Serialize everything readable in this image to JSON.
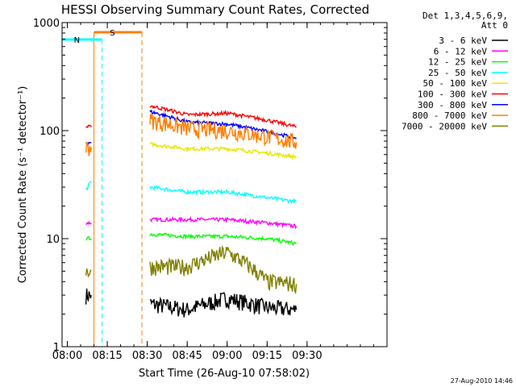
{
  "chart_data": {
    "type": "line",
    "title": "HESSI Observing Summary Count Rates, Corrected",
    "xlabel": "Start Time (26-Aug-10 07:58:02)",
    "ylabel": "Corrected Count Rate (s⁻¹ detector⁻¹)",
    "yscale": "log",
    "ylim": [
      1,
      1000
    ],
    "xlim": [
      "07:58:02",
      "10:00"
    ],
    "x_ticks": [
      "08:00",
      "08:15",
      "08:30",
      "08:45",
      "09:00",
      "09:15",
      "09:30"
    ],
    "y_ticks": [
      "1",
      "10",
      "100",
      "1000"
    ],
    "grid": false,
    "legend_title": [
      "Det 1,3,4,5,6,9,",
      "Att 0"
    ],
    "legend_position": "right",
    "footer_date": "27-Aug-2010 14:46",
    "flags": [
      {
        "label": "S",
        "color": "#ff7f00",
        "start": "08:10",
        "end": "08:28"
      },
      {
        "label": "N",
        "color": "#00ffff",
        "start": "07:58",
        "end": "08:13"
      }
    ],
    "series": [
      {
        "name": "3 - 6 keV",
        "color": "#000000",
        "segments": [
          {
            "x": [
              "08:07",
              "08:09"
            ],
            "y": [
              3,
              3
            ]
          },
          {
            "x": [
              "08:31",
              "08:45",
              "09:00",
              "09:15",
              "09:26"
            ],
            "y": [
              2.5,
              2.2,
              2.8,
              2.3,
              2.2
            ]
          }
        ]
      },
      {
        "name": "6 - 12 keV",
        "color": "#ff00ff",
        "segments": [
          {
            "x": [
              "08:07",
              "08:09"
            ],
            "y": [
              14,
              14
            ]
          },
          {
            "x": [
              "08:31",
              "08:45",
              "09:00",
              "09:15",
              "09:26"
            ],
            "y": [
              15,
              15,
              15,
              14,
              13
            ]
          }
        ]
      },
      {
        "name": "12 - 25 keV",
        "color": "#00ff00",
        "segments": [
          {
            "x": [
              "08:07",
              "08:09"
            ],
            "y": [
              10,
              10
            ]
          },
          {
            "x": [
              "08:31",
              "08:45",
              "09:00",
              "09:15",
              "09:26"
            ],
            "y": [
              11,
              10.5,
              10.5,
              10,
              9
            ]
          }
        ]
      },
      {
        "name": "25 - 50 keV",
        "color": "#00ffff",
        "segments": [
          {
            "x": [
              "08:07",
              "08:09"
            ],
            "y": [
              28,
              34
            ]
          },
          {
            "x": [
              "08:31",
              "08:45",
              "09:00",
              "09:15",
              "09:26"
            ],
            "y": [
              30,
              27,
              27,
              24,
              22
            ]
          }
        ]
      },
      {
        "name": "50 - 100 keV",
        "color": "#e8e800",
        "segments": [
          {
            "x": [
              "08:31",
              "08:45",
              "09:00",
              "09:15",
              "09:26"
            ],
            "y": [
              75,
              68,
              68,
              62,
              57
            ]
          }
        ]
      },
      {
        "name": "100 - 300 keV",
        "color": "#ff0000",
        "segments": [
          {
            "x": [
              "08:07",
              "08:09"
            ],
            "y": [
              108,
              108
            ]
          },
          {
            "x": [
              "08:31",
              "08:45",
              "09:00",
              "09:15",
              "09:26"
            ],
            "y": [
              170,
              140,
              145,
              125,
              108
            ]
          }
        ]
      },
      {
        "name": "300 - 800 keV",
        "color": "#0000ff",
        "segments": [
          {
            "x": [
              "08:07",
              "08:09"
            ],
            "y": [
              78,
              78
            ]
          },
          {
            "x": [
              "08:31",
              "08:45",
              "09:00",
              "09:15",
              "09:26"
            ],
            "y": [
              150,
              120,
              115,
              98,
              85
            ]
          }
        ]
      },
      {
        "name": "800 - 7000 keV",
        "color": "#ff7f00",
        "segments": [
          {
            "x": [
              "08:07",
              "08:09"
            ],
            "y": [
              70,
              70
            ]
          },
          {
            "x": [
              "08:31",
              "08:45",
              "09:00",
              "09:15",
              "09:26"
            ],
            "y": [
              125,
              105,
              100,
              88,
              78
            ]
          }
        ]
      },
      {
        "name": "7000 - 20000 keV",
        "color": "#808000",
        "segments": [
          {
            "x": [
              "08:07",
              "08:09"
            ],
            "y": [
              5,
              5
            ]
          },
          {
            "x": [
              "08:31",
              "08:45",
              "09:00",
              "09:15",
              "09:26"
            ],
            "y": [
              5.5,
              5.5,
              7.5,
              4,
              3.8
            ]
          }
        ]
      }
    ]
  }
}
